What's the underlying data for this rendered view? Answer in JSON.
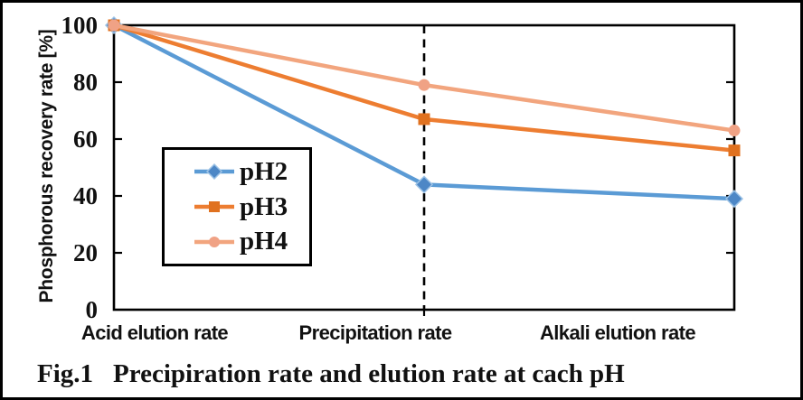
{
  "figure": {
    "caption_prefix": "Fig.1",
    "caption_text": "Precipiration rate and elution rate at cach pH"
  },
  "chart_data": {
    "type": "line",
    "title": "",
    "y_axis_title": "Phosphorous recovery rate [%]",
    "xlabel": "",
    "ylabel": "Phosphorous recovery rate [%]",
    "categories": [
      "Acid elution rate",
      "Precipitation rate",
      "Alkali elution rate"
    ],
    "ylim": [
      0,
      100
    ],
    "yticks": [
      0,
      20,
      40,
      60,
      80,
      100
    ],
    "ytick_labels_top_down": [
      "100",
      "80",
      "60",
      "40",
      "20",
      "0"
    ],
    "grid": false,
    "legend_position": "inside-left",
    "dashed_divider_at_category_index": 1,
    "axis_color": "#000000",
    "series": [
      {
        "name": "pH2",
        "values": [
          100,
          44,
          39
        ],
        "color": "#5B9BD5",
        "marker": "diamond",
        "marker_fill": "#4D87C6",
        "marker_stroke": "#9DC3E6"
      },
      {
        "name": "pH3",
        "values": [
          100,
          67,
          56
        ],
        "color": "#ED7D31",
        "marker": "square",
        "marker_fill": "#E0711F",
        "marker_stroke": "none"
      },
      {
        "name": "pH4",
        "values": [
          100,
          79,
          63
        ],
        "color": "#F2A57E",
        "marker": "circle",
        "marker_fill": "#F0A285",
        "marker_stroke": "none"
      }
    ]
  }
}
